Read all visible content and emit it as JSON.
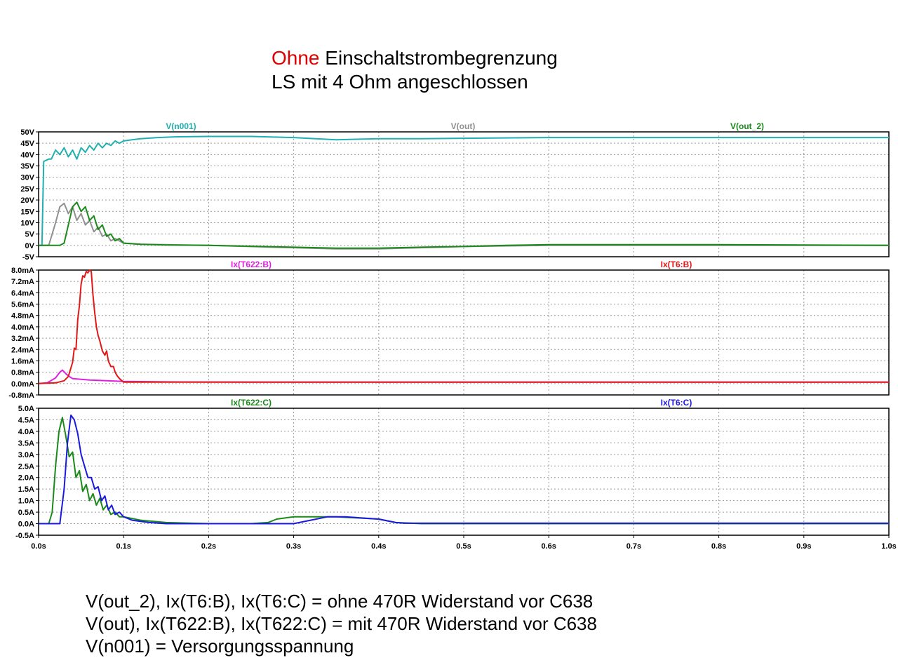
{
  "header": {
    "line1_red": "Ohne",
    "line1_rest": " Einschaltstrombegrenzung",
    "line2": "LS mit 4 Ohm angeschlossen"
  },
  "footer": {
    "line1": "V(out_2), Ix(T6:B), Ix(T6:C) = ohne 470R Widerstand vor C638",
    "line2": "V(out), Ix(T622:B), Ix(T622:C) = mit 470R Widerstand vor C638",
    "line3": "V(n001) = Versorgungsspannung"
  },
  "chart_data": [
    {
      "type": "line",
      "xlabel": "",
      "ylabel": "",
      "xlim": [
        0,
        1.0
      ],
      "ylim": [
        -5,
        50
      ],
      "grid": true,
      "yticks": [
        "-5V",
        "0V",
        "5V",
        "10V",
        "15V",
        "20V",
        "25V",
        "30V",
        "35V",
        "40V",
        "45V",
        "50V"
      ],
      "ytick_values": [
        -5,
        0,
        5,
        10,
        15,
        20,
        25,
        30,
        35,
        40,
        45,
        50
      ],
      "series": [
        {
          "name": "V(n001)",
          "color": "#20b0b0",
          "x": [
            0,
            0.004,
            0.006,
            0.012,
            0.015,
            0.02,
            0.025,
            0.03,
            0.035,
            0.04,
            0.045,
            0.05,
            0.055,
            0.06,
            0.065,
            0.07,
            0.075,
            0.08,
            0.085,
            0.09,
            0.095,
            0.1,
            0.11,
            0.12,
            0.14,
            0.16,
            0.2,
            0.25,
            0.3,
            0.35,
            0.4,
            0.45,
            0.5,
            0.6,
            0.8,
            1.0
          ],
          "y": [
            0,
            0,
            37,
            38,
            38,
            42,
            40,
            43,
            39,
            42,
            38,
            43,
            41,
            44,
            42,
            45,
            43,
            45,
            44,
            46,
            45,
            46,
            46.5,
            47,
            47.5,
            47.8,
            48,
            48,
            47.5,
            46.5,
            47,
            47,
            47.2,
            47.5,
            47.5,
            47.5
          ]
        },
        {
          "name": "V(out)",
          "color": "#909090",
          "x": [
            0,
            0.012,
            0.02,
            0.025,
            0.03,
            0.035,
            0.04,
            0.045,
            0.05,
            0.055,
            0.06,
            0.065,
            0.07,
            0.075,
            0.08,
            0.085,
            0.09,
            0.1,
            0.12,
            0.15,
            0.2,
            0.3,
            0.35,
            0.4,
            0.45,
            0.5,
            0.6,
            1.0
          ],
          "y": [
            0,
            0,
            10,
            17,
            18.5,
            14,
            17,
            11,
            14,
            9,
            11,
            6,
            8,
            4,
            5,
            2,
            3,
            1,
            0.5,
            0.3,
            0,
            -1,
            -1.5,
            -1.5,
            -1,
            -0.5,
            0,
            0
          ]
        },
        {
          "name": "V(out_2)",
          "color": "#1a8a1a",
          "x": [
            0,
            0.025,
            0.03,
            0.035,
            0.04,
            0.045,
            0.05,
            0.055,
            0.06,
            0.065,
            0.07,
            0.075,
            0.08,
            0.085,
            0.09,
            0.095,
            0.1,
            0.12,
            0.15,
            0.2,
            0.3,
            0.35,
            0.4,
            0.45,
            0.5,
            0.55,
            0.6,
            0.7,
            0.8,
            1.0
          ],
          "y": [
            0,
            0,
            1,
            9,
            17,
            19,
            15,
            17,
            11,
            13,
            7,
            9,
            4,
            5,
            2,
            3,
            1,
            0.5,
            0.2,
            0,
            -0.8,
            -1.2,
            -1.2,
            -0.8,
            -0.5,
            0,
            0.3,
            0.3,
            0.3,
            0
          ]
        }
      ]
    },
    {
      "type": "line",
      "xlabel": "",
      "ylabel": "",
      "xlim": [
        0,
        1.0
      ],
      "ylim": [
        -0.8,
        8.0
      ],
      "grid": true,
      "yticks": [
        "-0.8mA",
        "0.0mA",
        "0.8mA",
        "1.6mA",
        "2.4mA",
        "3.2mA",
        "4.0mA",
        "4.8mA",
        "5.6mA",
        "6.4mA",
        "7.2mA",
        "8.0mA"
      ],
      "ytick_values": [
        -0.8,
        0,
        0.8,
        1.6,
        2.4,
        3.2,
        4.0,
        4.8,
        5.6,
        6.4,
        7.2,
        8.0
      ],
      "series": [
        {
          "name": "Ix(T622:B)",
          "color": "#e020e0",
          "x": [
            0,
            0.01,
            0.02,
            0.025,
            0.028,
            0.032,
            0.036,
            0.04,
            0.05,
            0.06,
            0.08,
            0.1,
            0.15,
            0.3,
            0.5,
            1.0
          ],
          "y": [
            0,
            0.05,
            0.4,
            0.8,
            0.95,
            0.7,
            0.5,
            0.35,
            0.3,
            0.25,
            0.2,
            0.15,
            0.12,
            0.1,
            0.1,
            0.1
          ]
        },
        {
          "name": "Ix(T6:B)",
          "color": "#e01818",
          "x": [
            0,
            0.02,
            0.03,
            0.035,
            0.04,
            0.042,
            0.044,
            0.046,
            0.048,
            0.05,
            0.052,
            0.054,
            0.056,
            0.058,
            0.06,
            0.062,
            0.064,
            0.066,
            0.068,
            0.07,
            0.072,
            0.075,
            0.078,
            0.08,
            0.082,
            0.085,
            0.088,
            0.09,
            0.093,
            0.096,
            0.1,
            0.15,
            0.3,
            0.5,
            1.0
          ],
          "y": [
            0,
            0.05,
            0.2,
            0.5,
            1.5,
            2.5,
            2.4,
            4.5,
            5.5,
            7.0,
            7.6,
            7.5,
            7.9,
            7.8,
            8.0,
            7.9,
            6.2,
            5.0,
            4.0,
            3.4,
            3.0,
            2.3,
            2.0,
            2.3,
            1.6,
            1.2,
            1.2,
            0.8,
            0.5,
            0.3,
            0.1,
            0.1,
            0.1,
            0.1,
            0.1
          ]
        }
      ]
    },
    {
      "type": "line",
      "xlabel": "",
      "ylabel": "",
      "xlim": [
        0,
        1.0
      ],
      "ylim": [
        -0.5,
        5.0
      ],
      "grid": true,
      "yticks": [
        "-0.5A",
        "0.0A",
        "0.5A",
        "1.0A",
        "1.5A",
        "2.0A",
        "2.5A",
        "3.0A",
        "3.5A",
        "4.0A",
        "4.5A",
        "5.0A"
      ],
      "ytick_values": [
        -0.5,
        0,
        0.5,
        1.0,
        1.5,
        2.0,
        2.5,
        3.0,
        3.5,
        4.0,
        4.5,
        5.0
      ],
      "xticks": [
        "0.0s",
        "0.1s",
        "0.2s",
        "0.3s",
        "0.4s",
        "0.5s",
        "0.6s",
        "0.7s",
        "0.8s",
        "0.9s",
        "1.0s"
      ],
      "xtick_values": [
        0,
        0.1,
        0.2,
        0.3,
        0.4,
        0.5,
        0.6,
        0.7,
        0.8,
        0.9,
        1.0
      ],
      "series": [
        {
          "name": "Ix(T622:C)",
          "color": "#1a8a1a",
          "x": [
            0,
            0.012,
            0.016,
            0.02,
            0.024,
            0.028,
            0.032,
            0.036,
            0.04,
            0.044,
            0.048,
            0.052,
            0.056,
            0.06,
            0.064,
            0.068,
            0.072,
            0.076,
            0.08,
            0.085,
            0.09,
            0.095,
            0.1,
            0.12,
            0.15,
            0.2,
            0.25,
            0.27,
            0.28,
            0.3,
            0.35,
            0.4,
            0.42,
            0.45,
            0.5,
            0.6,
            1.0
          ],
          "y": [
            0,
            0,
            0.5,
            2.5,
            4.0,
            4.6,
            3.8,
            2.9,
            3.1,
            2.0,
            2.3,
            1.4,
            1.7,
            1.0,
            1.3,
            0.8,
            1.1,
            0.6,
            0.8,
            0.4,
            0.5,
            0.3,
            0.3,
            0.15,
            0.05,
            0,
            0,
            0.05,
            0.2,
            0.3,
            0.3,
            0.2,
            0.05,
            0,
            0,
            0,
            0
          ]
        },
        {
          "name": "Ix(T6:C)",
          "color": "#1a1ae0",
          "x": [
            0,
            0.025,
            0.03,
            0.034,
            0.038,
            0.042,
            0.046,
            0.05,
            0.054,
            0.058,
            0.062,
            0.066,
            0.07,
            0.074,
            0.078,
            0.082,
            0.086,
            0.09,
            0.095,
            0.1,
            0.11,
            0.13,
            0.15,
            0.2,
            0.3,
            0.32,
            0.34,
            0.36,
            0.4,
            0.42,
            0.43,
            0.5,
            1.0
          ],
          "y": [
            0,
            0,
            1.5,
            3.5,
            4.7,
            4.5,
            3.9,
            3.0,
            2.5,
            2.0,
            2.0,
            1.5,
            1.6,
            1.0,
            1.2,
            0.6,
            0.8,
            0.4,
            0.5,
            0.3,
            0.15,
            0.05,
            0,
            0,
            0,
            0.15,
            0.3,
            0.3,
            0.2,
            0.05,
            0.02,
            0.02,
            0.02
          ]
        }
      ]
    }
  ]
}
